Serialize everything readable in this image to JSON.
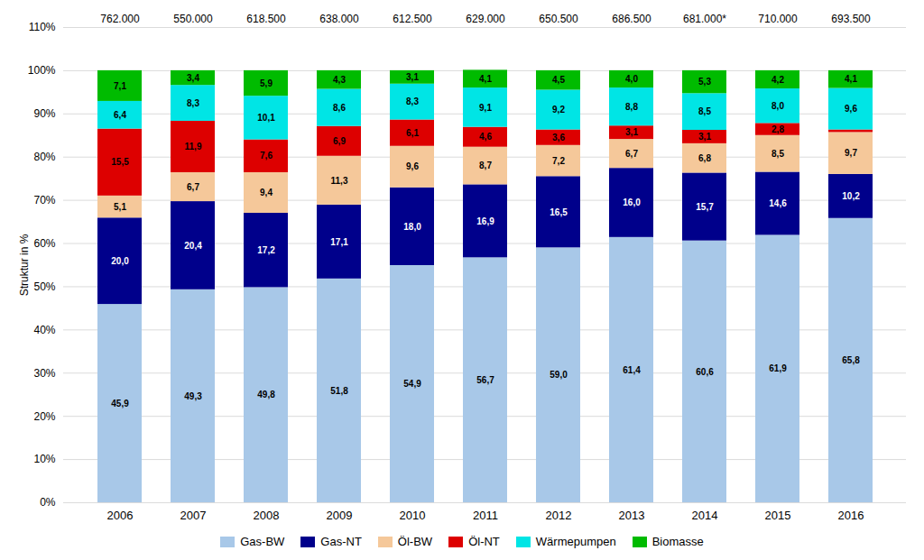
{
  "chart_data": {
    "type": "bar",
    "stacked": true,
    "categories": [
      "2006",
      "2007",
      "2008",
      "2009",
      "2010",
      "2011",
      "2012",
      "2013",
      "2014",
      "2015",
      "2016"
    ],
    "series": [
      {
        "name": "Gas-BW",
        "color": "#a8c8e8",
        "values": [
          45.9,
          49.3,
          49.8,
          51.8,
          54.9,
          56.7,
          59.0,
          61.4,
          60.6,
          61.9,
          65.8
        ],
        "value_labels": [
          "45,9",
          "49,3",
          "49,8",
          "51,8",
          "54,9",
          "56,7",
          "59,0",
          "61,4",
          "60,6",
          "61,9",
          "65,8"
        ]
      },
      {
        "name": "Gas-NT",
        "color": "#00008b",
        "values": [
          20.0,
          20.4,
          17.2,
          17.1,
          18.0,
          16.9,
          16.5,
          16.0,
          15.7,
          14.6,
          10.2
        ],
        "value_labels": [
          "20,0",
          "20,4",
          "17,2",
          "17,1",
          "18,0",
          "16,9",
          "16,5",
          "16,0",
          "15,7",
          "14,6",
          "10,2"
        ]
      },
      {
        "name": "Öl-BW",
        "color": "#f5c89a",
        "values": [
          5.1,
          6.7,
          9.4,
          11.3,
          9.6,
          8.7,
          7.2,
          6.7,
          6.8,
          8.5,
          9.7
        ],
        "value_labels": [
          "5,1",
          "6,7",
          "9,4",
          "11,3",
          "9,6",
          "8,7",
          "7,2",
          "6,7",
          "6,8",
          "8,5",
          "9,7"
        ]
      },
      {
        "name": "Öl-NT",
        "color": "#dd0000",
        "values": [
          15.5,
          11.9,
          7.6,
          6.9,
          6.1,
          4.6,
          3.6,
          3.1,
          3.1,
          2.8,
          0.6
        ],
        "value_labels": [
          "15,5",
          "11,9",
          "7,6",
          "6,9",
          "6,1",
          "4,6",
          "3,6",
          "3,1",
          "3,1",
          "2,8",
          null
        ]
      },
      {
        "name": "Wärmepumpen",
        "color": "#00e5e5",
        "values": [
          6.4,
          8.3,
          10.1,
          8.6,
          8.3,
          9.1,
          9.2,
          8.8,
          8.5,
          8.0,
          9.6
        ],
        "value_labels": [
          "6,4",
          "8,3",
          "10,1",
          "8,6",
          "8,3",
          "9,1",
          "9,2",
          "8,8",
          "8,5",
          "8,0",
          "9,6"
        ]
      },
      {
        "name": "Biomasse",
        "color": "#00bb00",
        "values": [
          7.1,
          3.4,
          5.9,
          4.3,
          3.1,
          4.1,
          4.5,
          4.0,
          5.3,
          4.2,
          4.1
        ],
        "value_labels": [
          "7,1",
          "3,4",
          "5,9",
          "4,3",
          "3,1",
          "4,1",
          "4,5",
          "4,0",
          "5,3",
          "4,2",
          "4,1"
        ]
      }
    ],
    "data_labels": true,
    "annotations": [
      {
        "x": "2006",
        "text": "762.000"
      },
      {
        "x": "2007",
        "text": "550.000"
      },
      {
        "x": "2008",
        "text": "618.500"
      },
      {
        "x": "2009",
        "text": "638.000"
      },
      {
        "x": "2010",
        "text": "612.500"
      },
      {
        "x": "2011",
        "text": "629.000"
      },
      {
        "x": "2012",
        "text": "650.500"
      },
      {
        "x": "2013",
        "text": "686.500"
      },
      {
        "x": "2014",
        "text": "681.000*"
      },
      {
        "x": "2015",
        "text": "710.000"
      },
      {
        "x": "2016",
        "text": "693.500"
      }
    ],
    "ylabel": "Struktur in %",
    "ylim": [
      0,
      110
    ],
    "yticks": [
      {
        "value": 0,
        "label": "0%"
      },
      {
        "value": 10,
        "label": "10%"
      },
      {
        "value": 20,
        "label": "20%"
      },
      {
        "value": 30,
        "label": "30%"
      },
      {
        "value": 40,
        "label": "40%"
      },
      {
        "value": 50,
        "label": "50%"
      },
      {
        "value": 60,
        "label": "60%"
      },
      {
        "value": 70,
        "label": "70%"
      },
      {
        "value": 80,
        "label": "80%"
      },
      {
        "value": 90,
        "label": "90%"
      },
      {
        "value": 100,
        "label": "100%"
      },
      {
        "value": 110,
        "label": "110%"
      }
    ],
    "grid": true,
    "legend": "bottom"
  }
}
